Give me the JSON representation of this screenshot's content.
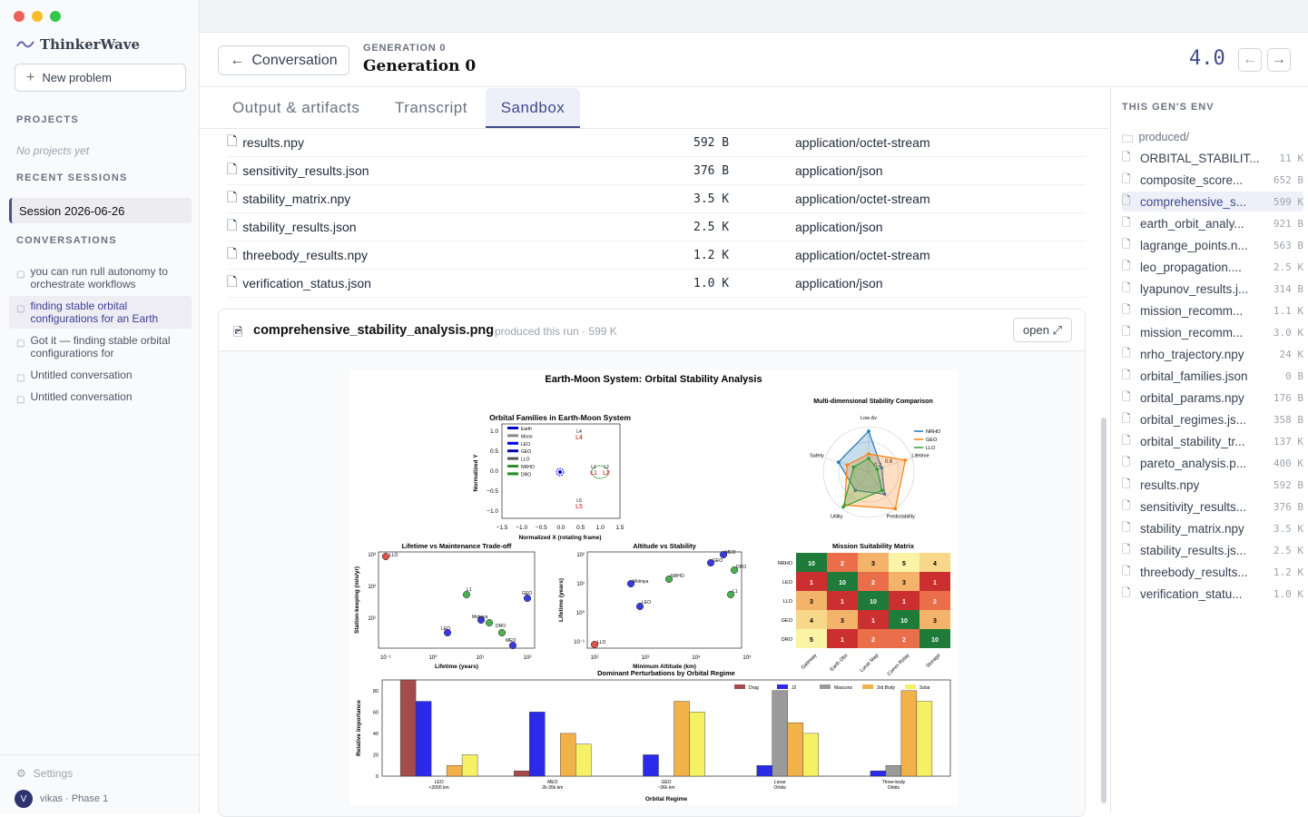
{
  "app": {
    "name": "ThinkerWave",
    "new_problem": "New problem"
  },
  "sidebar": {
    "projects_head": "PROJECTS",
    "no_projects": "No projects yet",
    "recent_head": "RECENT SESSIONS",
    "session": "Session 2026-06-26",
    "conv_head": "CONVERSATIONS",
    "conversations": [
      {
        "label": "you can run rull autonomy to orchestrate workflows"
      },
      {
        "label": "finding stable orbital configurations for an Earth"
      },
      {
        "label": "Got it — finding stable orbital configurations for"
      },
      {
        "label": "Untitled conversation"
      },
      {
        "label": "Untitled conversation"
      }
    ],
    "settings": "Settings",
    "user": "vikas · Phase 1",
    "avatar": "V"
  },
  "header": {
    "back": "Conversation",
    "gen_small": "GENERATION 0",
    "gen_title": "Generation 0",
    "score": "4.0"
  },
  "tabs": [
    "Output & artifacts",
    "Transcript",
    "Sandbox"
  ],
  "files": [
    {
      "name": "results.npy",
      "size": "592 B",
      "type": "application/octet-stream",
      "icon": "file-icon"
    },
    {
      "name": "sensitivity_results.json",
      "size": "376 B",
      "type": "application/json",
      "icon": "json-icon"
    },
    {
      "name": "stability_matrix.npy",
      "size": "3.5 K",
      "type": "application/octet-stream",
      "icon": "file-icon"
    },
    {
      "name": "stability_results.json",
      "size": "2.5 K",
      "type": "application/json",
      "icon": "json-icon"
    },
    {
      "name": "threebody_results.npy",
      "size": "1.2 K",
      "type": "application/octet-stream",
      "icon": "file-icon"
    },
    {
      "name": "verification_status.json",
      "size": "1.0 K",
      "type": "application/json",
      "icon": "json-icon"
    }
  ],
  "preview": {
    "name": "comprehensive_stability_analysis.png",
    "meta": "produced this run · 599 K",
    "open": "open ⤢"
  },
  "rpanel": {
    "head": "THIS GEN'S ENV",
    "folder": "produced/",
    "files": [
      {
        "name": "ORBITAL_STABILIT...",
        "size": "11 K"
      },
      {
        "name": "composite_score...",
        "size": "652 B"
      },
      {
        "name": "comprehensive_s...",
        "size": "599 K"
      },
      {
        "name": "earth_orbit_analy...",
        "size": "921 B"
      },
      {
        "name": "lagrange_points.n...",
        "size": "563 B"
      },
      {
        "name": "leo_propagation....",
        "size": "2.5 K"
      },
      {
        "name": "lyapunov_results.j...",
        "size": "314 B"
      },
      {
        "name": "mission_recomm...",
        "size": "1.1 K"
      },
      {
        "name": "mission_recomm...",
        "size": "3.0 K"
      },
      {
        "name": "nrho_trajectory.npy",
        "size": "24 K"
      },
      {
        "name": "orbital_families.json",
        "size": "0 B"
      },
      {
        "name": "orbital_params.npy",
        "size": "176 B"
      },
      {
        "name": "orbital_regimes.js...",
        "size": "358 B"
      },
      {
        "name": "orbital_stability_tr...",
        "size": "137 K"
      },
      {
        "name": "pareto_analysis.p...",
        "size": "400 K"
      },
      {
        "name": "results.npy",
        "size": "592 B"
      },
      {
        "name": "sensitivity_results...",
        "size": "376 B"
      },
      {
        "name": "stability_matrix.npy",
        "size": "3.5 K"
      },
      {
        "name": "stability_results.js...",
        "size": "2.5 K"
      },
      {
        "name": "threebody_results...",
        "size": "1.2 K"
      },
      {
        "name": "verification_statu...",
        "size": "1.0 K"
      }
    ]
  },
  "figure": {
    "title": "Earth-Moon System: Orbital Stability Analysis",
    "p1": {
      "title": "Orbital Families in Earth-Moon System",
      "xlabel": "Normalized X (rotating frame)",
      "ylabel": "Normalized Y",
      "xticks": [
        "−1.5",
        "−1.0",
        "−0.5",
        "0.0",
        "0.5",
        "1.0",
        "1.5"
      ],
      "yticks": [
        "1.0",
        "0.5",
        "0.0",
        "−0.5",
        "−1.0"
      ],
      "legend": [
        "Earth",
        "Moon",
        "LEO",
        "GEO",
        "LLO",
        "NRHO",
        "DRO"
      ],
      "pts": [
        "L4",
        "L5",
        "L1",
        "L2"
      ]
    },
    "p2": {
      "title": "Multi-dimensional Stability Comparison",
      "axes": [
        "Low Δv",
        "Lifetime",
        "Predictability",
        "Utility",
        "Safety"
      ],
      "legend": [
        "NRHO",
        "GEO",
        "LLO"
      ],
      "rings": [
        "0.2",
        "0.6"
      ]
    },
    "p3": {
      "title": "Lifetime vs Maintenance Trade-off",
      "xlabel": "Lifetime (years)",
      "ylabel": "Station-keeping (m/s/yr)",
      "xticks": [
        "10⁻¹",
        "10⁰",
        "10¹",
        "10²"
      ],
      "yticks": [
        "10³",
        "10²",
        "10¹"
      ],
      "labels": [
        "LLO",
        "L1",
        "GEO",
        "Molniya",
        "DRO",
        "LEO",
        "MEO"
      ]
    },
    "p4": {
      "title": "Altitude vs Stability",
      "xlabel": "Minimum Altitude (km)",
      "ylabel": "Lifetime (years)",
      "xticks": [
        "10²",
        "10³",
        "10⁴",
        "10⁵"
      ],
      "yticks": [
        "10²",
        "10¹",
        "10⁰",
        "10⁻¹"
      ],
      "labels": [
        "Molniya",
        "NRHO",
        "LEO",
        "LLO",
        "GEO",
        "MEO",
        "DRO",
        "L1"
      ]
    },
    "p5": {
      "title": "Mission Suitability Matrix",
      "rows": [
        "NRHO",
        "LEO",
        "LLO",
        "GEO",
        "DRO"
      ],
      "cols": [
        "Gateway",
        "Earth Obs",
        "Lunar Map",
        "Comm Relay",
        "Storage"
      ],
      "values": [
        [
          10,
          2,
          3,
          5,
          4
        ],
        [
          1,
          10,
          2,
          3,
          1
        ],
        [
          3,
          1,
          10,
          1,
          2
        ],
        [
          4,
          3,
          1,
          10,
          3
        ],
        [
          5,
          1,
          2,
          2,
          10
        ]
      ]
    },
    "p6": {
      "title": "Dominant Perturbations by Orbital Regime",
      "xlabel": "Orbital Regime",
      "ylabel": "Relative Importance",
      "yticks": [
        "0",
        "20",
        "40",
        "60",
        "80"
      ],
      "categories": [
        "LEO\n<2000 km",
        "MEO\n2k-35k km",
        "GEO\n~36k km",
        "Lunar\nOrbits",
        "Three-body\nOrbits"
      ],
      "series": [
        {
          "name": "Drag",
          "color": "#a64b4b",
          "values": [
            90,
            5,
            0,
            0,
            0
          ]
        },
        {
          "name": "J2",
          "color": "#2a2ae8",
          "values": [
            70,
            60,
            20,
            10,
            5
          ]
        },
        {
          "name": "Mascons",
          "color": "#9a9a9a",
          "values": [
            0,
            0,
            0,
            80,
            10
          ]
        },
        {
          "name": "3rd Body",
          "color": "#f2b24a",
          "values": [
            10,
            40,
            70,
            50,
            80
          ]
        },
        {
          "name": "Solar",
          "color": "#f5f064",
          "values": [
            20,
            30,
            60,
            40,
            70
          ]
        }
      ]
    }
  }
}
